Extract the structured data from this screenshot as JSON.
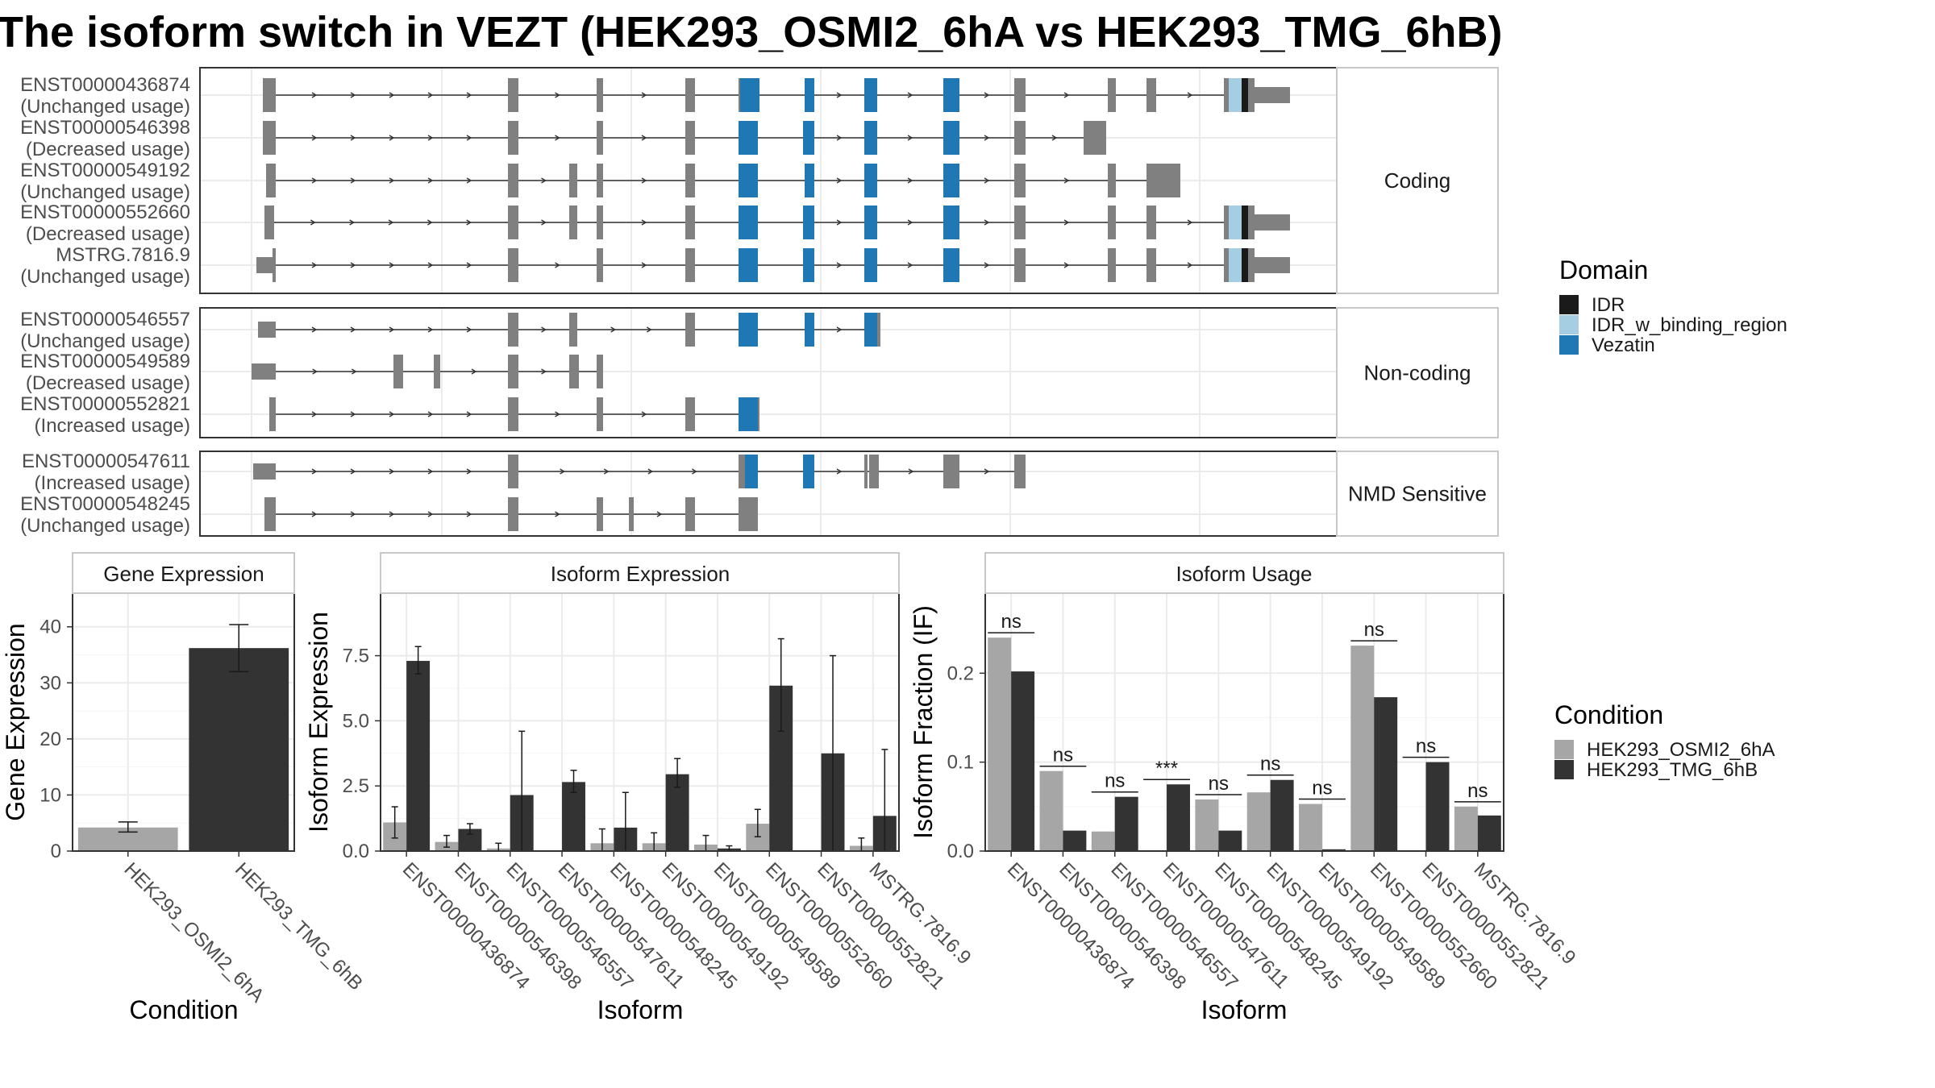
{
  "title": "The isoform switch in VEZT (HEK293_OSMI2_6hA vs HEK293_TMG_6hB)",
  "colors": {
    "exon": "#808080",
    "IDR": "#1a1a1a",
    "IDR_w_binding_region": "#a6cee3",
    "Vezatin": "#1f78b4",
    "cond1": "#a6a6a6",
    "cond2": "#333333"
  },
  "transcripts": {
    "groups": [
      {
        "label": "Coding",
        "rows": [
          {
            "id": "ENST00000436874",
            "usage": "(Unchanged usage)"
          },
          {
            "id": "ENST00000546398",
            "usage": "(Decreased usage)"
          },
          {
            "id": "ENST00000549192",
            "usage": "(Unchanged usage)"
          },
          {
            "id": "ENST00000552660",
            "usage": "(Decreased usage)"
          },
          {
            "id": "MSTRG.7816.9",
            "usage": "(Unchanged usage)"
          }
        ]
      },
      {
        "label": "Non-coding",
        "rows": [
          {
            "id": "ENST00000546557",
            "usage": "(Unchanged usage)"
          },
          {
            "id": "ENST00000549589",
            "usage": "(Decreased usage)"
          },
          {
            "id": "ENST00000552821",
            "usage": "(Increased usage)"
          }
        ]
      },
      {
        "label": "NMD Sensitive",
        "rows": [
          {
            "id": "ENST00000547611",
            "usage": "(Increased usage)"
          },
          {
            "id": "ENST00000548245",
            "usage": "(Unchanged usage)"
          }
        ]
      }
    ]
  },
  "legend_domain": {
    "title": "Domain",
    "items": [
      "IDR",
      "IDR_w_binding_region",
      "Vezatin"
    ]
  },
  "legend_condition": {
    "title": "Condition",
    "items": [
      "HEK293_OSMI2_6hA",
      "HEK293_TMG_6hB"
    ]
  },
  "chart_data": [
    {
      "type": "bar",
      "title": "Gene Expression",
      "xlabel": "Condition",
      "ylabel": "Gene Expression",
      "ylim": [
        0,
        46
      ],
      "yticks": [
        0,
        10,
        20,
        30,
        40
      ],
      "categories": [
        "HEK293_OSMI2_6hA",
        "HEK293_TMG_6hB"
      ],
      "values": [
        4.2,
        36.2
      ],
      "error": [
        [
          3.4,
          5.2
        ],
        [
          32.0,
          40.4
        ]
      ]
    },
    {
      "type": "bar",
      "title": "Isoform Expression",
      "xlabel": "Isoform",
      "ylabel": "Isoform Expression",
      "ylim": [
        0,
        9.9
      ],
      "yticks": [
        0.0,
        2.5,
        5.0,
        7.5
      ],
      "categories": [
        "ENST00000436874",
        "ENST00000546398",
        "ENST00000546557",
        "ENST00000547611",
        "ENST00000548245",
        "ENST00000549192",
        "ENST00000549589",
        "ENST00000552660",
        "ENST00000552821",
        "MSTRG.7816.9"
      ],
      "series": [
        {
          "name": "HEK293_OSMI2_6hA",
          "values": [
            1.1,
            0.35,
            0.1,
            0.0,
            0.3,
            0.3,
            0.25,
            1.05,
            0.0,
            0.2
          ],
          "error_low": [
            0.5,
            0.15,
            0.0,
            0.0,
            0.0,
            0.0,
            0.0,
            0.55,
            0.0,
            0.0
          ],
          "error_high": [
            1.7,
            0.6,
            0.3,
            0.0,
            0.85,
            0.7,
            0.6,
            1.6,
            0.0,
            0.5
          ]
        },
        {
          "name": "HEK293_TMG_6hB",
          "values": [
            7.3,
            0.85,
            2.15,
            2.65,
            0.9,
            2.95,
            0.1,
            6.35,
            3.75,
            1.35
          ],
          "error_low": [
            6.8,
            0.65,
            0.0,
            2.25,
            0.0,
            2.45,
            0.0,
            4.6,
            0.0,
            0.0
          ],
          "error_high": [
            7.85,
            1.05,
            4.6,
            3.1,
            2.25,
            3.55,
            0.2,
            8.15,
            7.5,
            3.9
          ]
        }
      ]
    },
    {
      "type": "bar",
      "title": "Isoform Usage",
      "xlabel": "Isoform",
      "ylabel": "Isoform Fraction (IF)",
      "ylim": [
        0,
        0.29
      ],
      "yticks": [
        0.0,
        0.1,
        0.2
      ],
      "categories": [
        "ENST00000436874",
        "ENST00000546398",
        "ENST00000546557",
        "ENST00000547611",
        "ENST00000548245",
        "ENST00000549192",
        "ENST00000549589",
        "ENST00000552660",
        "ENST00000552821",
        "MSTRG.7816.9"
      ],
      "series": [
        {
          "name": "HEK293_OSMI2_6hA",
          "values": [
            0.24,
            0.09,
            0.022,
            0.0,
            0.058,
            0.066,
            0.053,
            0.231,
            0.0,
            0.05
          ]
        },
        {
          "name": "HEK293_TMG_6hB",
          "values": [
            0.202,
            0.023,
            0.061,
            0.075,
            0.023,
            0.08,
            0.002,
            0.173,
            0.1,
            0.04
          ]
        }
      ],
      "significance": [
        "ns",
        "ns",
        "ns",
        "***",
        "ns",
        "ns",
        "ns",
        "ns",
        "ns",
        "ns"
      ]
    }
  ]
}
